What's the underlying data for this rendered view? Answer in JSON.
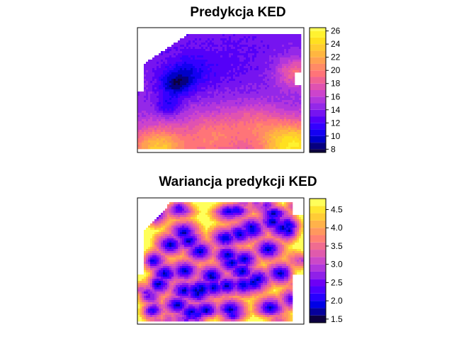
{
  "chart_data": [
    {
      "type": "heatmap",
      "title": "Predykcja KED",
      "legend_placement": "right",
      "zlim": [
        7.5,
        26.5
      ],
      "legend_breaks": [
        7.5,
        8,
        9,
        10,
        11,
        12,
        13,
        14,
        15,
        16,
        17,
        18,
        19,
        20,
        21,
        22,
        23,
        24,
        25,
        26,
        26.5
      ],
      "legend_ticks": [
        "8",
        "10",
        "12",
        "14",
        "16",
        "18",
        "20",
        "22",
        "24",
        "26"
      ],
      "palette": [
        "#0d0040",
        "#060080",
        "#0000c8",
        "#1400f2",
        "#3500ff",
        "#5400f8",
        "#7614f0",
        "#9428e8",
        "#b236dc",
        "#cc44cc",
        "#e052b0",
        "#f06294",
        "#ff7478",
        "#ff8a66",
        "#ffa052",
        "#ffb640",
        "#ffcc30",
        "#ffe020",
        "#fff230",
        "#ffff5a"
      ],
      "grid": false
    },
    {
      "type": "heatmap",
      "title": "Wariancja predykcji KED",
      "legend_placement": "right",
      "zlim": [
        1.4,
        4.8
      ],
      "legend_breaks": [
        1.4,
        1.6,
        1.8,
        2.0,
        2.2,
        2.4,
        2.6,
        2.8,
        3.0,
        3.2,
        3.4,
        3.6,
        3.8,
        4.0,
        4.2,
        4.4,
        4.6,
        4.8
      ],
      "legend_ticks": [
        "1.5",
        "2.0",
        "2.5",
        "3.0",
        "3.5",
        "4.0",
        "4.5"
      ],
      "palette": [
        "#0d0040",
        "#06009a",
        "#0000e6",
        "#2800ff",
        "#4c00ff",
        "#6e00f5",
        "#9020e8",
        "#b036dc",
        "#cc48c8",
        "#e05aac",
        "#f06c90",
        "#ff8074",
        "#ff985e",
        "#ffb24a",
        "#ffcc36",
        "#ffe630",
        "#ffff5a"
      ],
      "grid": false
    }
  ]
}
